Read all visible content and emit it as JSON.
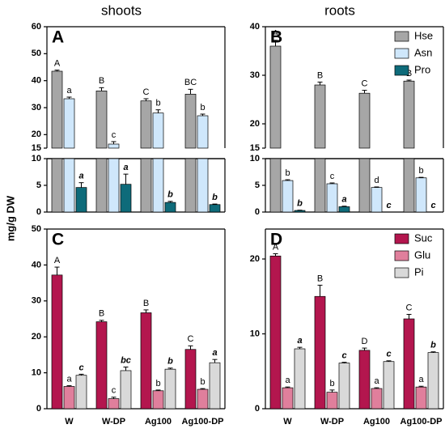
{
  "column_titles": [
    "shoots",
    "roots"
  ],
  "ylabel": "mg/g DW",
  "chart_data": [
    {
      "type": "bar",
      "panel_label": "A",
      "ylim": [
        0,
        60
      ],
      "axis_break": [
        10,
        15
      ],
      "yticks": [
        0,
        5,
        10,
        15,
        20,
        30,
        40,
        50,
        60
      ],
      "series": [
        {
          "color": "#a6a6a6",
          "values": [
            43.5,
            36.2,
            32.5,
            35
          ],
          "errors": [
            0.4,
            1.2,
            0.8,
            1.8
          ],
          "labels": [
            "A",
            "B",
            "C",
            "BC"
          ]
        },
        {
          "color": "#cfe7fb",
          "values": [
            33.3,
            16.5,
            28,
            27
          ],
          "errors": [
            0.6,
            0.9,
            1.2,
            0.6
          ],
          "labels": [
            "a",
            "c",
            "b",
            "b"
          ]
        },
        {
          "color": "#0e6b7a",
          "values": [
            4.6,
            5.2,
            1.8,
            1.4
          ],
          "errors": [
            0.9,
            1.9,
            0.2,
            0.1
          ],
          "labels": [
            "a",
            "a",
            "b",
            "b"
          ],
          "label_style": "bold-italic"
        }
      ]
    },
    {
      "type": "bar",
      "panel_label": "B",
      "ylim": [
        0,
        40
      ],
      "axis_break": [
        10,
        15
      ],
      "yticks": [
        0,
        5,
        10,
        15,
        20,
        30,
        40
      ],
      "legend": "upper right",
      "series": [
        {
          "name": "Hse",
          "color": "#a6a6a6",
          "values": [
            36,
            28,
            26.3,
            28.8
          ],
          "errors": [
            1.2,
            0.6,
            0.6,
            0.2
          ],
          "labels": [
            "A",
            "B",
            "C",
            "B"
          ]
        },
        {
          "name": "Asn",
          "color": "#cfe7fb",
          "values": [
            5.9,
            5.3,
            4.6,
            6.4
          ],
          "errors": [
            0.15,
            0.15,
            0.1,
            0.1
          ],
          "labels": [
            "b",
            "c",
            "d",
            "b"
          ]
        },
        {
          "name": "Pro",
          "color": "#0e6b7a",
          "values": [
            0.3,
            1.0,
            0,
            0
          ],
          "errors": [
            0.05,
            0.1,
            0,
            0
          ],
          "labels": [
            "b",
            "a",
            "c",
            "c"
          ],
          "label_style": "bold-italic"
        }
      ]
    },
    {
      "type": "bar",
      "panel_label": "C",
      "ylim": [
        0,
        50
      ],
      "yticks": [
        0,
        10,
        20,
        30,
        40,
        50
      ],
      "categories": [
        "W",
        "W-DP",
        "Ag100",
        "Ag100-DP"
      ],
      "series": [
        {
          "color": "#b3164e",
          "values": [
            37.2,
            24.2,
            26.7,
            16.5
          ],
          "errors": [
            2.2,
            0.4,
            0.8,
            1.0
          ],
          "labels": [
            "A",
            "B",
            "B",
            "C"
          ]
        },
        {
          "color": "#e07f9c",
          "values": [
            6.2,
            2.8,
            5.0,
            5.4
          ],
          "errors": [
            0.2,
            0.4,
            0.2,
            0.2
          ],
          "labels": [
            "a",
            "c",
            "b",
            "b"
          ]
        },
        {
          "color": "#d9d9d9",
          "values": [
            9.3,
            10.6,
            11,
            12.8
          ],
          "errors": [
            0.3,
            1.0,
            0.3,
            0.9
          ],
          "labels": [
            "c",
            "bc",
            "b",
            "a"
          ],
          "label_style": "bold-italic"
        }
      ]
    },
    {
      "type": "bar",
      "panel_label": "D",
      "ylim": [
        0,
        24
      ],
      "yticks": [
        0,
        10,
        20
      ],
      "legend": "upper right",
      "categories": [
        "W",
        "W-DP",
        "Ag100",
        "Ag100-DP"
      ],
      "series": [
        {
          "name": "Suc",
          "color": "#b3164e",
          "values": [
            20.4,
            15,
            7.8,
            12
          ],
          "errors": [
            0.3,
            1.5,
            0.3,
            0.6
          ],
          "labels": [
            "A",
            "B",
            "D",
            "C"
          ]
        },
        {
          "name": "Glu",
          "color": "#e07f9c",
          "values": [
            2.8,
            2.2,
            2.7,
            2.9
          ],
          "errors": [
            0.1,
            0.3,
            0.1,
            0.1
          ],
          "labels": [
            "a",
            "b",
            "a",
            "a"
          ]
        },
        {
          "name": "Pi",
          "color": "#d9d9d9",
          "values": [
            8,
            6.1,
            6.3,
            7.5
          ],
          "errors": [
            0.2,
            0.1,
            0.1,
            0.1
          ],
          "labels": [
            "a",
            "c",
            "c",
            "b"
          ],
          "label_style": "bold-italic"
        }
      ]
    }
  ]
}
